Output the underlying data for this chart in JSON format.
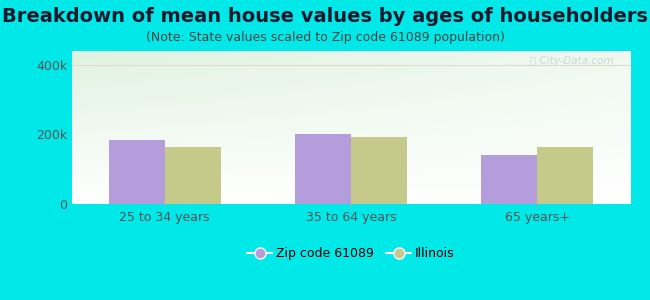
{
  "title": "Breakdown of mean house values by ages of householders",
  "subtitle": "(Note: State values scaled to Zip code 61089 population)",
  "categories": [
    "25 to 34 years",
    "35 to 64 years",
    "65 years+"
  ],
  "zip_values": [
    185000,
    200000,
    140000
  ],
  "illinois_values": [
    163000,
    192000,
    163000
  ],
  "zip_color": "#b39ddb",
  "illinois_color": "#c5c98a",
  "background_outer": "#00e8e8",
  "ylim": [
    0,
    440000
  ],
  "yticks": [
    0,
    200000,
    400000
  ],
  "ytick_labels": [
    "0",
    "200k",
    "400k"
  ],
  "bar_width": 0.3,
  "legend_labels": [
    "Zip code 61089",
    "Illinois"
  ],
  "watermark": "Ⓣ City-Data.com",
  "title_fontsize": 14,
  "subtitle_fontsize": 9,
  "axis_label_fontsize": 9,
  "legend_fontsize": 9
}
